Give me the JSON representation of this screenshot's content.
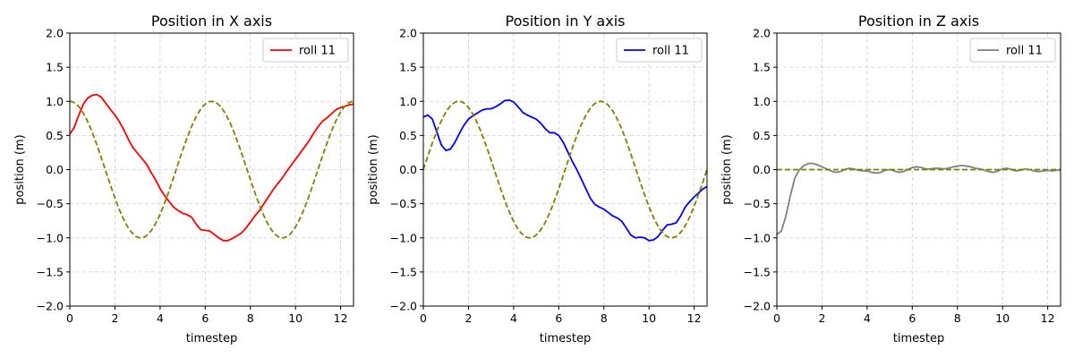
{
  "chart_data": [
    {
      "type": "line",
      "title": "Position in X axis",
      "xlabel": "timestep",
      "ylabel": "position (m)",
      "xlim": [
        0,
        12.57
      ],
      "ylim": [
        -2.0,
        2.0
      ],
      "xticks": [
        0,
        2,
        4,
        6,
        8,
        10,
        12
      ],
      "xtick_labels": [
        "0",
        "2",
        "4",
        "6",
        "8",
        "10",
        "12"
      ],
      "yticks": [
        -2.0,
        -1.5,
        -1.0,
        -0.5,
        0.0,
        0.5,
        1.0,
        1.5,
        2.0
      ],
      "ytick_labels": [
        "−2.0",
        "−1.5",
        "−1.0",
        "−0.5",
        "0.0",
        "0.5",
        "1.0",
        "1.5",
        "2.0"
      ],
      "grid": true,
      "legend": "top-right",
      "series": [
        {
          "name": "roll 11",
          "color": "#ff0000",
          "style": "solid",
          "x": [
            0,
            0.2,
            0.4,
            0.6,
            0.8,
            1.0,
            1.2,
            1.4,
            1.6,
            1.8,
            2.0,
            2.2,
            2.4,
            2.6,
            2.8,
            3.0,
            3.2,
            3.4,
            3.6,
            3.8,
            4.0,
            4.2,
            4.4,
            4.6,
            4.8,
            5.0,
            5.2,
            5.4,
            5.6,
            5.8,
            6.0,
            6.2,
            6.4,
            6.6,
            6.8,
            7.0,
            7.2,
            7.4,
            7.6,
            7.8,
            8.0,
            8.2,
            8.4,
            8.6,
            8.8,
            9.0,
            9.2,
            9.4,
            9.6,
            9.8,
            10.0,
            10.2,
            10.4,
            10.6,
            10.8,
            11.0,
            11.2,
            11.4,
            11.6,
            11.8,
            12.0,
            12.2,
            12.4,
            12.57
          ],
          "y": [
            0.52,
            0.62,
            0.8,
            0.96,
            1.05,
            1.09,
            1.1,
            1.06,
            0.97,
            0.88,
            0.8,
            0.7,
            0.58,
            0.44,
            0.32,
            0.24,
            0.16,
            0.08,
            -0.04,
            -0.15,
            -0.28,
            -0.38,
            -0.47,
            -0.55,
            -0.6,
            -0.64,
            -0.66,
            -0.7,
            -0.8,
            -0.88,
            -0.89,
            -0.9,
            -0.95,
            -1.0,
            -1.04,
            -1.04,
            -1.01,
            -0.97,
            -0.93,
            -0.86,
            -0.77,
            -0.68,
            -0.6,
            -0.5,
            -0.4,
            -0.3,
            -0.21,
            -0.13,
            -0.03,
            0.06,
            0.15,
            0.24,
            0.33,
            0.42,
            0.53,
            0.63,
            0.71,
            0.76,
            0.82,
            0.88,
            0.91,
            0.93,
            0.95,
            0.96
          ]
        },
        {
          "name": "",
          "color": "#808000",
          "style": "dashed",
          "function": "cos",
          "x_range": [
            0,
            12.57
          ]
        }
      ]
    },
    {
      "type": "line",
      "title": "Position in Y axis",
      "xlabel": "timestep",
      "ylabel": "position (m)",
      "xlim": [
        0,
        12.57
      ],
      "ylim": [
        -2.0,
        2.0
      ],
      "xticks": [
        0,
        2,
        4,
        6,
        8,
        10,
        12
      ],
      "xtick_labels": [
        "0",
        "2",
        "4",
        "6",
        "8",
        "10",
        "12"
      ],
      "yticks": [
        -2.0,
        -1.5,
        -1.0,
        -0.5,
        0.0,
        0.5,
        1.0,
        1.5,
        2.0
      ],
      "ytick_labels": [
        "−2.0",
        "−1.5",
        "−1.0",
        "−0.5",
        "0.0",
        "0.5",
        "1.0",
        "1.5",
        "2.0"
      ],
      "grid": true,
      "legend": "top-right",
      "series": [
        {
          "name": "roll 11",
          "color": "#0000ff",
          "style": "solid",
          "x": [
            0,
            0.2,
            0.4,
            0.6,
            0.8,
            1.0,
            1.2,
            1.4,
            1.6,
            1.8,
            2.0,
            2.2,
            2.4,
            2.6,
            2.8,
            3.0,
            3.2,
            3.4,
            3.6,
            3.8,
            4.0,
            4.2,
            4.4,
            4.6,
            4.8,
            5.0,
            5.2,
            5.4,
            5.6,
            5.8,
            6.0,
            6.2,
            6.4,
            6.6,
            6.8,
            7.0,
            7.2,
            7.4,
            7.6,
            7.8,
            8.0,
            8.2,
            8.4,
            8.6,
            8.8,
            9.0,
            9.2,
            9.4,
            9.6,
            9.8,
            10.0,
            10.2,
            10.4,
            10.6,
            10.8,
            11.0,
            11.2,
            11.4,
            11.6,
            11.8,
            12.0,
            12.2,
            12.4,
            12.57
          ],
          "y": [
            0.77,
            0.8,
            0.74,
            0.55,
            0.36,
            0.28,
            0.3,
            0.4,
            0.53,
            0.65,
            0.74,
            0.79,
            0.83,
            0.87,
            0.89,
            0.89,
            0.92,
            0.96,
            1.01,
            1.02,
            0.99,
            0.92,
            0.84,
            0.8,
            0.77,
            0.74,
            0.68,
            0.6,
            0.54,
            0.54,
            0.5,
            0.4,
            0.26,
            0.12,
            0.0,
            -0.14,
            -0.28,
            -0.42,
            -0.51,
            -0.55,
            -0.58,
            -0.63,
            -0.68,
            -0.71,
            -0.76,
            -0.86,
            -0.96,
            -1.0,
            -0.99,
            -1.0,
            -1.04,
            -1.03,
            -0.98,
            -0.89,
            -0.81,
            -0.8,
            -0.78,
            -0.68,
            -0.55,
            -0.47,
            -0.4,
            -0.34,
            -0.28,
            -0.25
          ]
        },
        {
          "name": "",
          "color": "#808000",
          "style": "dashed",
          "function": "sin",
          "x_range": [
            0,
            12.57
          ]
        }
      ]
    },
    {
      "type": "line",
      "title": "Position in Z axis",
      "xlabel": "timestep",
      "ylabel": "position (m)",
      "xlim": [
        0,
        12.57
      ],
      "ylim": [
        -2.0,
        2.0
      ],
      "xticks": [
        0,
        2,
        4,
        6,
        8,
        10,
        12
      ],
      "xtick_labels": [
        "0",
        "2",
        "4",
        "6",
        "8",
        "10",
        "12"
      ],
      "yticks": [
        -2.0,
        -1.5,
        -1.0,
        -0.5,
        0.0,
        0.5,
        1.0,
        1.5,
        2.0
      ],
      "ytick_labels": [
        "−2.0",
        "−1.5",
        "−1.0",
        "−0.5",
        "0.0",
        "0.5",
        "1.0",
        "1.5",
        "2.0"
      ],
      "grid": true,
      "legend": "top-right",
      "series": [
        {
          "name": "roll 11",
          "color": "#808080",
          "style": "solid",
          "x": [
            0,
            0.2,
            0.4,
            0.6,
            0.8,
            1.0,
            1.2,
            1.4,
            1.6,
            1.8,
            2.0,
            2.2,
            2.4,
            2.6,
            2.8,
            3.0,
            3.2,
            3.4,
            3.6,
            3.8,
            4.0,
            4.2,
            4.4,
            4.6,
            4.8,
            5.0,
            5.2,
            5.4,
            5.6,
            5.8,
            6.0,
            6.2,
            6.4,
            6.6,
            6.8,
            7.0,
            7.2,
            7.4,
            7.6,
            7.8,
            8.0,
            8.2,
            8.4,
            8.6,
            8.8,
            9.0,
            9.2,
            9.4,
            9.6,
            9.8,
            10.0,
            10.2,
            10.4,
            10.6,
            10.8,
            11.0,
            11.2,
            11.4,
            11.6,
            11.8,
            12.0,
            12.2,
            12.4,
            12.57
          ],
          "y": [
            -0.95,
            -0.9,
            -0.68,
            -0.38,
            -0.12,
            0.0,
            0.06,
            0.09,
            0.09,
            0.07,
            0.04,
            0.01,
            -0.02,
            -0.04,
            -0.03,
            0.0,
            0.02,
            0.01,
            -0.01,
            -0.02,
            -0.02,
            -0.04,
            -0.05,
            -0.04,
            -0.01,
            0.0,
            -0.02,
            -0.04,
            -0.03,
            0.0,
            0.03,
            0.04,
            0.03,
            0.01,
            0.01,
            0.02,
            0.02,
            0.01,
            0.02,
            0.04,
            0.05,
            0.06,
            0.05,
            0.04,
            0.02,
            0.01,
            -0.01,
            -0.03,
            -0.04,
            -0.02,
            0.01,
            0.02,
            0.0,
            -0.02,
            -0.01,
            0.01,
            0.0,
            -0.02,
            -0.03,
            -0.02,
            -0.01,
            -0.02,
            -0.01,
            -0.01
          ]
        },
        {
          "name": "",
          "color": "#808000",
          "style": "dashed",
          "function": "zero",
          "x_range": [
            0,
            12.57
          ]
        }
      ]
    }
  ]
}
